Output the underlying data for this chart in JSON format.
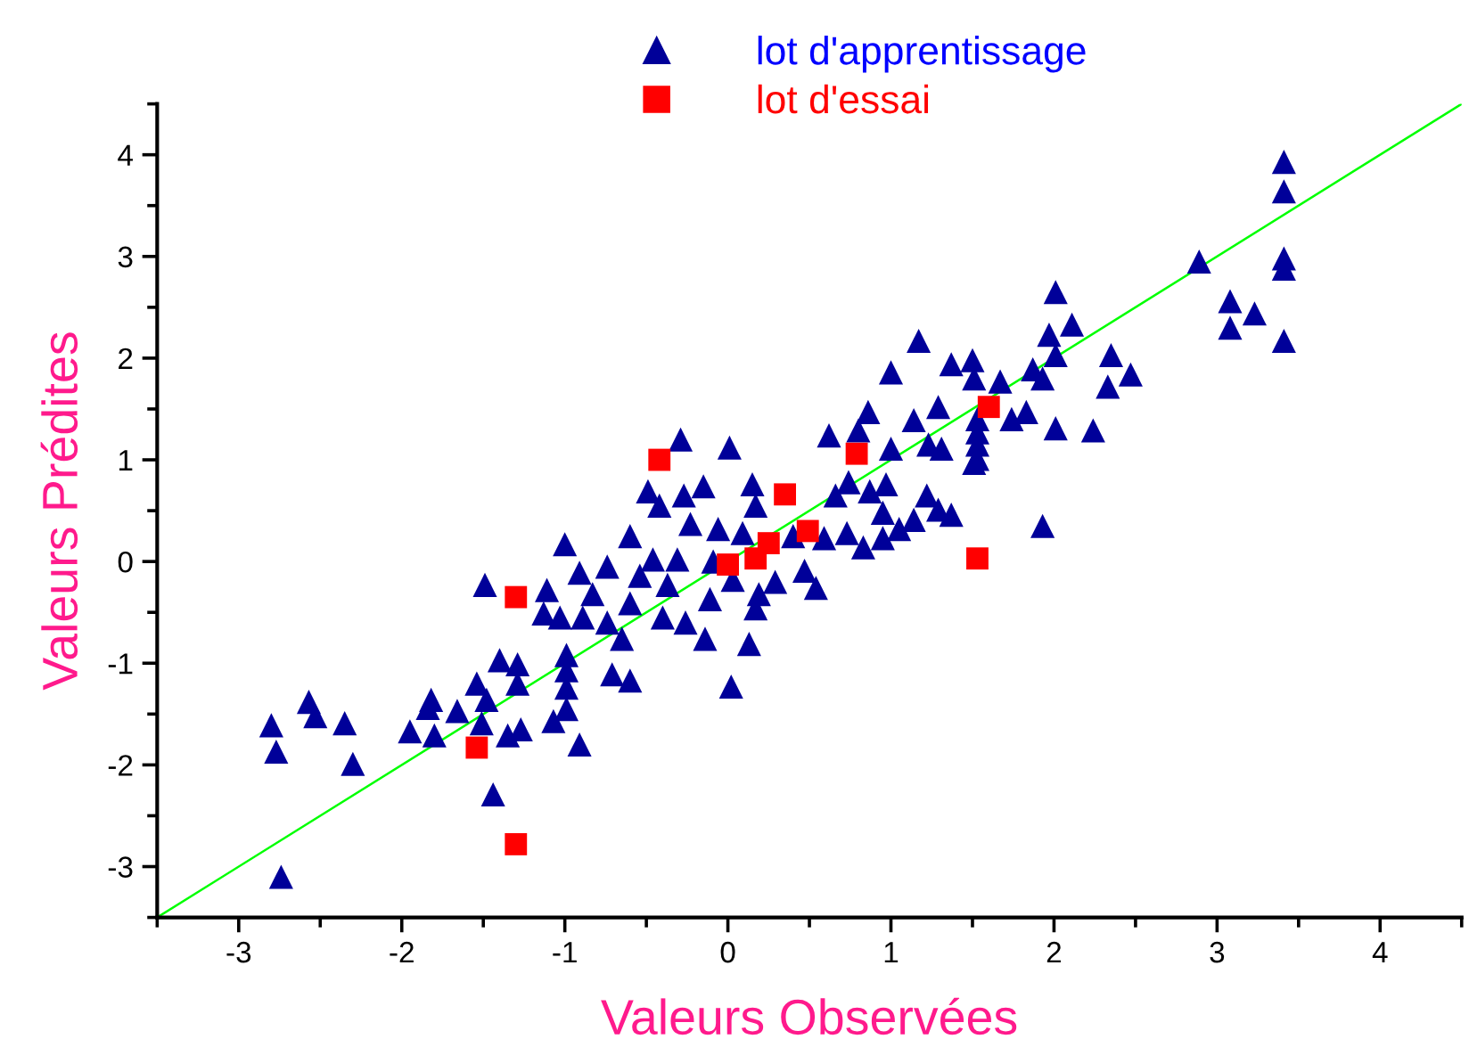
{
  "chart_data": {
    "type": "scatter",
    "xlabel": "Valeurs Observées",
    "ylabel": "Valeurs Prédites",
    "xlim": [
      -3.5,
      4.5
    ],
    "ylim": [
      -3.5,
      4.5
    ],
    "xticks": [
      -3,
      -2,
      -1,
      0,
      1,
      2,
      3,
      4
    ],
    "yticks": [
      -3,
      -2,
      -1,
      0,
      1,
      2,
      3,
      4
    ],
    "grid": false,
    "legend": "top",
    "series": [
      {
        "name": "lot d'apprentissage",
        "color": "#000099",
        "marker": "triangle",
        "x": [
          -2.8,
          -2.77,
          -2.57,
          -2.53,
          -2.35,
          -2.3,
          -2.74,
          -1.95,
          -1.82,
          -1.8,
          -1.84,
          -1.66,
          -1.54,
          -1.49,
          -1.51,
          -1.48,
          -1.44,
          -1.4,
          -1.35,
          -1.29,
          -1.29,
          -1.27,
          -1.11,
          -1.13,
          -1.07,
          -1.0,
          -1.03,
          -0.99,
          -0.99,
          -0.99,
          -0.99,
          -0.91,
          -0.91,
          -0.89,
          -0.83,
          -0.74,
          -0.74,
          -0.71,
          -0.65,
          -0.6,
          -0.6,
          -0.6,
          -0.54,
          -0.49,
          -0.46,
          -0.42,
          -0.4,
          -0.37,
          -0.31,
          -0.29,
          -0.27,
          -0.26,
          -0.23,
          -0.15,
          -0.14,
          -0.11,
          -0.09,
          -0.06,
          0.01,
          0.02,
          0.03,
          0.09,
          0.13,
          0.15,
          0.17,
          0.17,
          0.19,
          0.29,
          0.4,
          0.47,
          0.54,
          0.59,
          0.62,
          0.66,
          0.73,
          0.74,
          0.8,
          0.83,
          0.86,
          0.87,
          0.95,
          0.97,
          0.95,
          1.0,
          1.0,
          1.05,
          1.14,
          1.17,
          1.14,
          1.22,
          1.23,
          1.29,
          1.29,
          1.31,
          1.37,
          1.37,
          1.5,
          1.51,
          1.53,
          1.53,
          1.53,
          1.53,
          1.51,
          1.67,
          1.74,
          1.83,
          1.87,
          1.93,
          1.93,
          1.97,
          2.01,
          2.01,
          2.01,
          2.11,
          2.24,
          2.33,
          2.35,
          2.47,
          2.89,
          3.08,
          3.08,
          3.23,
          3.41,
          3.41,
          3.41,
          3.41,
          3.41
        ],
        "values": [
          -1.61,
          -1.87,
          -1.38,
          -1.52,
          -1.59,
          -1.99,
          -3.1,
          -1.67,
          -1.36,
          -1.71,
          -1.44,
          -1.47,
          -1.2,
          -0.23,
          -1.59,
          -1.36,
          -2.29,
          -0.97,
          -1.71,
          -1.01,
          -1.2,
          -1.65,
          -0.28,
          -0.51,
          -1.57,
          0.17,
          -0.55,
          -0.92,
          -1.07,
          -1.24,
          -1.45,
          -1.8,
          -0.11,
          -0.55,
          -0.32,
          -0.05,
          -0.6,
          -1.11,
          -0.76,
          0.25,
          -1.17,
          -0.41,
          -0.14,
          0.69,
          0.02,
          0.55,
          -0.55,
          -0.23,
          0.02,
          1.2,
          0.65,
          -0.6,
          0.37,
          0.74,
          -0.76,
          -0.37,
          0.0,
          0.32,
          1.12,
          -1.23,
          -0.18,
          0.28,
          -0.81,
          0.76,
          0.55,
          -0.46,
          -0.32,
          -0.2,
          0.25,
          -0.09,
          -0.26,
          0.23,
          1.24,
          0.65,
          0.28,
          0.78,
          1.29,
          0.14,
          1.47,
          0.69,
          0.48,
          0.76,
          0.23,
          1.86,
          1.11,
          0.32,
          0.41,
          2.17,
          1.39,
          0.65,
          1.15,
          1.52,
          0.51,
          1.11,
          1.94,
          0.46,
          1.98,
          1.8,
          1.4,
          1.27,
          1.15,
          1.01,
          0.97,
          1.77,
          1.4,
          1.47,
          1.89,
          1.8,
          0.35,
          2.23,
          2.65,
          2.03,
          1.31,
          2.33,
          1.29,
          1.72,
          2.03,
          1.84,
          2.95,
          2.56,
          2.3,
          2.44,
          3.93,
          3.64,
          2.98,
          2.88,
          2.17
        ]
      },
      {
        "name": "lot d'essai",
        "color": "#ff0000",
        "marker": "square",
        "x": [
          -0.42,
          -1.3,
          -1.54,
          -1.3,
          0.0,
          0.17,
          0.25,
          0.35,
          0.49,
          0.79,
          1.53,
          1.6
        ],
        "values": [
          1.0,
          -0.35,
          -1.83,
          -2.78,
          -0.03,
          0.03,
          0.18,
          0.66,
          0.3,
          1.06,
          0.03,
          1.52
        ]
      },
      {
        "type": "line",
        "color": "#00ff00",
        "marker": "none",
        "x": [
          -3.5,
          4.5
        ],
        "values": [
          -3.5,
          4.5
        ]
      }
    ]
  }
}
